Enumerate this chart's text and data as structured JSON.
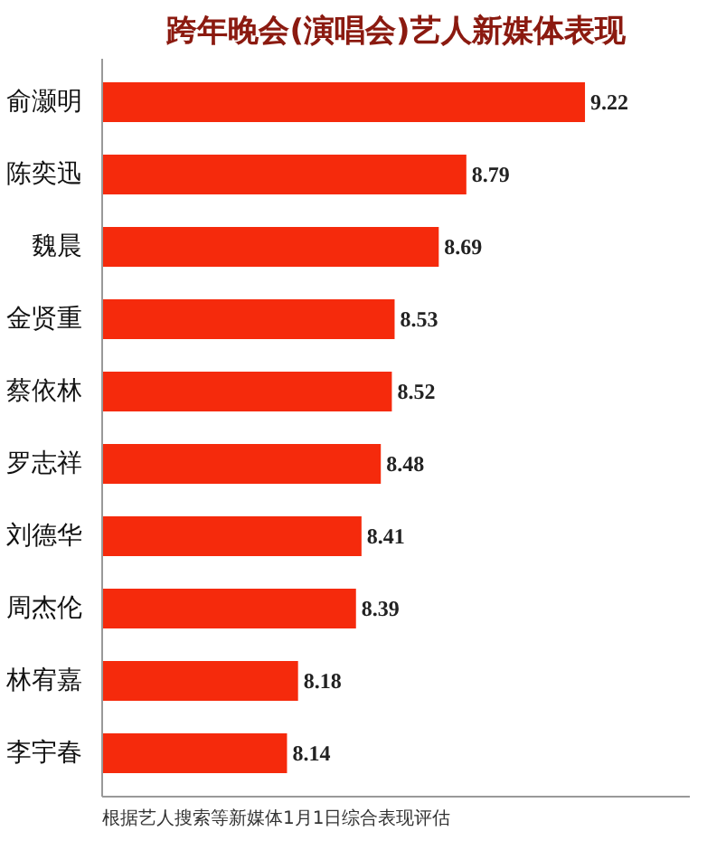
{
  "chart_data": {
    "type": "bar",
    "orientation": "horizontal",
    "title": "跨年晚会(演唱会)艺人新媒体表现",
    "categories": [
      "俞灏明",
      "陈奕迅",
      "魏晨",
      "金贤重",
      "蔡依林",
      "罗志祥",
      "刘德华",
      "周杰伦",
      "林宥嘉",
      "李宇春"
    ],
    "values": [
      9.22,
      8.79,
      8.69,
      8.53,
      8.52,
      8.48,
      8.41,
      8.39,
      8.18,
      8.14
    ],
    "color": "#f52a0c",
    "xlim": [
      7.47,
      9.6
    ],
    "tick_labels": "y",
    "data_labels": true,
    "grid": false,
    "annotations": [
      "根据艺人搜索等新媒体1月1日综合表现评估"
    ]
  }
}
